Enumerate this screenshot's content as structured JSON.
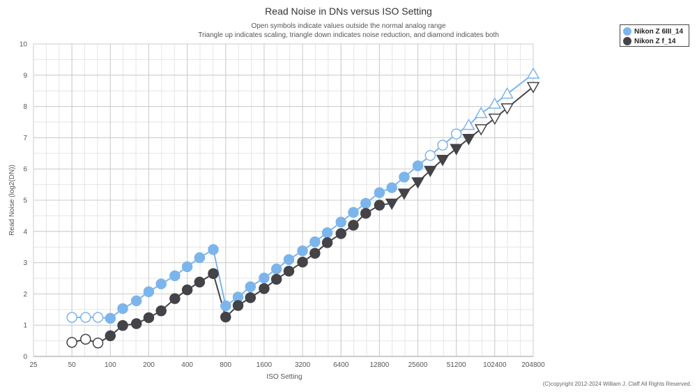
{
  "chart_data": {
    "type": "line",
    "title": "Read Noise in DNs versus ISO Setting",
    "subtitle_lines": [
      "Open symbols indicate values outside the normal analog range",
      "Triangle up indicates scaling, triangle down indicates noise reduction, and diamond indicates both"
    ],
    "xlabel": "ISO Setting",
    "ylabel": "Read Noise (log2(DN))",
    "x_scale": "log2",
    "x_ticks": [
      25,
      50,
      100,
      200,
      400,
      800,
      1600,
      3200,
      6400,
      12800,
      25600,
      51200,
      102400,
      204800
    ],
    "y_ticks": [
      0,
      1,
      2,
      3,
      4,
      5,
      6,
      7,
      8,
      9,
      10
    ],
    "ylim": [
      0,
      10
    ],
    "grid": true,
    "legend_position": "top-right",
    "series": [
      {
        "name": "Nikon Z 6III_14",
        "color": "#7cb5ec",
        "points": [
          {
            "x": 50,
            "y": 1.25,
            "m": "open-circle"
          },
          {
            "x": 64,
            "y": 1.25,
            "m": "open-circle"
          },
          {
            "x": 80,
            "y": 1.25,
            "m": "open-circle"
          },
          {
            "x": 100,
            "y": 1.22,
            "m": "circle"
          },
          {
            "x": 125,
            "y": 1.53,
            "m": "circle"
          },
          {
            "x": 160,
            "y": 1.78,
            "m": "circle"
          },
          {
            "x": 200,
            "y": 2.07,
            "m": "circle"
          },
          {
            "x": 250,
            "y": 2.32,
            "m": "circle"
          },
          {
            "x": 320,
            "y": 2.58,
            "m": "circle"
          },
          {
            "x": 400,
            "y": 2.87,
            "m": "circle"
          },
          {
            "x": 500,
            "y": 3.16,
            "m": "circle"
          },
          {
            "x": 640,
            "y": 3.42,
            "m": "circle"
          },
          {
            "x": 800,
            "y": 1.62,
            "m": "circle"
          },
          {
            "x": 1000,
            "y": 1.9,
            "m": "circle"
          },
          {
            "x": 1250,
            "y": 2.23,
            "m": "circle"
          },
          {
            "x": 1600,
            "y": 2.51,
            "m": "circle"
          },
          {
            "x": 2000,
            "y": 2.8,
            "m": "circle"
          },
          {
            "x": 2500,
            "y": 3.1,
            "m": "circle"
          },
          {
            "x": 3200,
            "y": 3.38,
            "m": "circle"
          },
          {
            "x": 4000,
            "y": 3.67,
            "m": "circle"
          },
          {
            "x": 5000,
            "y": 3.96,
            "m": "circle"
          },
          {
            "x": 6400,
            "y": 4.3,
            "m": "circle"
          },
          {
            "x": 8000,
            "y": 4.61,
            "m": "circle"
          },
          {
            "x": 10000,
            "y": 4.9,
            "m": "circle"
          },
          {
            "x": 12800,
            "y": 5.24,
            "m": "circle"
          },
          {
            "x": 16000,
            "y": 5.4,
            "m": "circle"
          },
          {
            "x": 20000,
            "y": 5.74,
            "m": "circle"
          },
          {
            "x": 25600,
            "y": 6.1,
            "m": "circle"
          },
          {
            "x": 32000,
            "y": 6.43,
            "m": "open-circle"
          },
          {
            "x": 40000,
            "y": 6.76,
            "m": "open-circle"
          },
          {
            "x": 51200,
            "y": 7.12,
            "m": "open-circle"
          },
          {
            "x": 64000,
            "y": 7.4,
            "m": "open-triangle-up"
          },
          {
            "x": 80000,
            "y": 7.78,
            "m": "open-triangle-up"
          },
          {
            "x": 102400,
            "y": 8.08,
            "m": "open-triangle-up"
          },
          {
            "x": 128000,
            "y": 8.4,
            "m": "open-triangle-up"
          },
          {
            "x": 204800,
            "y": 9.04,
            "m": "open-triangle-up"
          }
        ]
      },
      {
        "name": "Nikon Z f_14",
        "color": "#434348",
        "points": [
          {
            "x": 50,
            "y": 0.45,
            "m": "open-circle"
          },
          {
            "x": 64,
            "y": 0.55,
            "m": "open-circle"
          },
          {
            "x": 80,
            "y": 0.43,
            "m": "open-circle"
          },
          {
            "x": 100,
            "y": 0.66,
            "m": "circle"
          },
          {
            "x": 125,
            "y": 0.99,
            "m": "circle"
          },
          {
            "x": 160,
            "y": 1.05,
            "m": "circle"
          },
          {
            "x": 200,
            "y": 1.24,
            "m": "circle"
          },
          {
            "x": 250,
            "y": 1.46,
            "m": "circle"
          },
          {
            "x": 320,
            "y": 1.85,
            "m": "circle"
          },
          {
            "x": 400,
            "y": 2.13,
            "m": "circle"
          },
          {
            "x": 500,
            "y": 2.38,
            "m": "circle"
          },
          {
            "x": 640,
            "y": 2.65,
            "m": "circle"
          },
          {
            "x": 800,
            "y": 1.26,
            "m": "circle"
          },
          {
            "x": 1000,
            "y": 1.63,
            "m": "circle"
          },
          {
            "x": 1250,
            "y": 1.88,
            "m": "circle"
          },
          {
            "x": 1600,
            "y": 2.17,
            "m": "circle"
          },
          {
            "x": 2000,
            "y": 2.47,
            "m": "circle"
          },
          {
            "x": 2500,
            "y": 2.73,
            "m": "circle"
          },
          {
            "x": 3200,
            "y": 3.02,
            "m": "circle"
          },
          {
            "x": 4000,
            "y": 3.3,
            "m": "circle"
          },
          {
            "x": 5000,
            "y": 3.64,
            "m": "circle"
          },
          {
            "x": 6400,
            "y": 3.93,
            "m": "circle"
          },
          {
            "x": 8000,
            "y": 4.2,
            "m": "circle"
          },
          {
            "x": 10000,
            "y": 4.58,
            "m": "circle"
          },
          {
            "x": 12800,
            "y": 4.84,
            "m": "circle"
          },
          {
            "x": 16000,
            "y": 4.9,
            "m": "triangle-down"
          },
          {
            "x": 20000,
            "y": 5.22,
            "m": "triangle-down"
          },
          {
            "x": 25600,
            "y": 5.58,
            "m": "triangle-down"
          },
          {
            "x": 32000,
            "y": 5.95,
            "m": "triangle-down"
          },
          {
            "x": 40000,
            "y": 6.3,
            "m": "triangle-down"
          },
          {
            "x": 51200,
            "y": 6.65,
            "m": "triangle-down"
          },
          {
            "x": 64000,
            "y": 6.97,
            "m": "triangle-down"
          },
          {
            "x": 80000,
            "y": 7.28,
            "m": "open-triangle-down"
          },
          {
            "x": 102400,
            "y": 7.62,
            "m": "open-triangle-down"
          },
          {
            "x": 128000,
            "y": 7.95,
            "m": "open-triangle-down"
          },
          {
            "x": 204800,
            "y": 8.63,
            "m": "open-triangle-down"
          }
        ]
      }
    ]
  },
  "legend": {
    "items": [
      {
        "label": "Nikon Z 6III_14",
        "color": "#7cb5ec"
      },
      {
        "label": "Nikon Z f_14",
        "color": "#434348"
      }
    ]
  },
  "copyright": "(C)copyright 2012-2024 William J. Claff All Rights Reserved."
}
